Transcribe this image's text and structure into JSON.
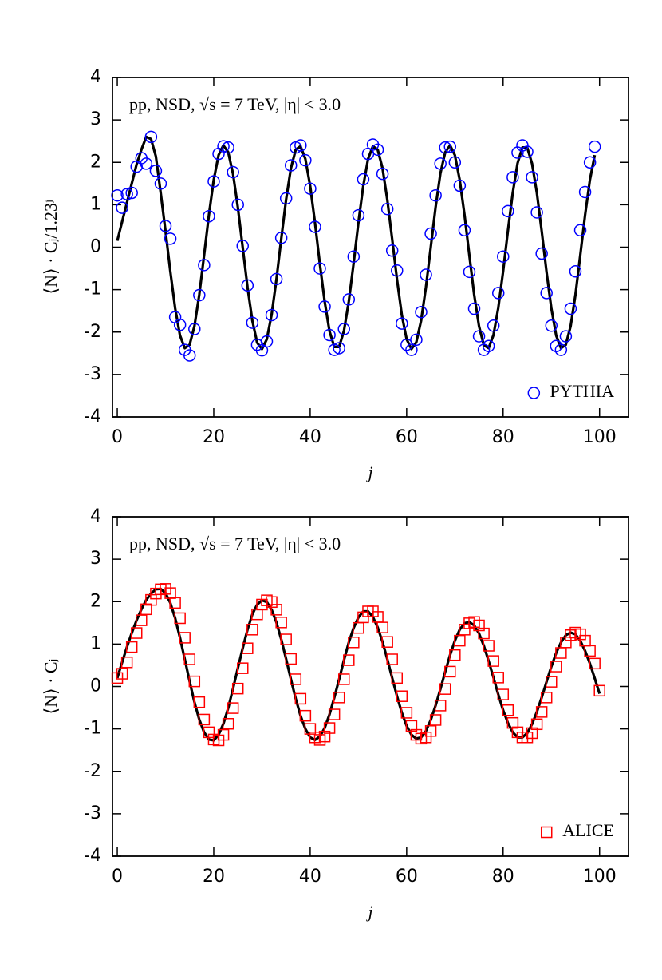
{
  "chart_data": [
    {
      "type": "scatter",
      "annotation": "pp, NSD, √s = 7 TeV, |η| < 3.0",
      "xlabel": "j",
      "ylabel": "⟨N⟩ · Cⱼ/1.23ʲ",
      "legend": "lower right",
      "xlim": [
        -1,
        106
      ],
      "ylim": [
        -4,
        4
      ],
      "xticks": [
        0,
        20,
        40,
        60,
        80,
        100
      ],
      "yticks": [
        -4,
        -3,
        -2,
        -1,
        0,
        1,
        2,
        3,
        4
      ],
      "x": [
        0,
        1,
        2,
        3,
        4,
        5,
        6,
        7,
        8,
        9,
        10,
        11,
        12,
        13,
        14,
        15,
        16,
        17,
        18,
        19,
        20,
        21,
        22,
        23,
        24,
        25,
        26,
        27,
        28,
        29,
        30,
        31,
        32,
        33,
        34,
        35,
        36,
        37,
        38,
        39,
        40,
        41,
        42,
        43,
        44,
        45,
        46,
        47,
        48,
        49,
        50,
        51,
        52,
        53,
        54,
        55,
        56,
        57,
        58,
        59,
        60,
        61,
        62,
        63,
        64,
        65,
        66,
        67,
        68,
        69,
        70,
        71,
        72,
        73,
        74,
        75,
        76,
        77,
        78,
        79,
        80,
        81,
        82,
        83,
        84,
        85,
        86,
        87,
        88,
        89,
        90,
        91,
        92,
        93,
        94,
        95,
        96,
        97,
        98,
        99
      ],
      "series": [
        {
          "name": "PYTHIA",
          "style": "markers",
          "marker": "circle",
          "color": "#0000ff",
          "values": [
            1.22,
            0.93,
            1.25,
            1.28,
            1.9,
            2.1,
            1.97,
            2.6,
            1.8,
            1.5,
            0.5,
            0.2,
            -1.65,
            -1.83,
            -2.42,
            -2.55,
            -1.93,
            -1.13,
            -0.42,
            0.73,
            1.55,
            2.2,
            2.38,
            2.35,
            1.77,
            1.0,
            0.03,
            -0.9,
            -1.78,
            -2.3,
            -2.43,
            -2.22,
            -1.6,
            -0.75,
            0.22,
            1.15,
            1.93,
            2.35,
            2.4,
            2.05,
            1.38,
            0.48,
            -0.5,
            -1.4,
            -2.07,
            -2.42,
            -2.38,
            -1.93,
            -1.23,
            -0.22,
            0.75,
            1.6,
            2.2,
            2.42,
            2.3,
            1.73,
            0.9,
            -0.08,
            -0.55,
            -1.8,
            -2.3,
            -2.42,
            -2.18,
            -1.53,
            -0.65,
            0.32,
            1.22,
            1.97,
            2.35,
            2.37,
            2.0,
            1.45,
            0.4,
            -0.58,
            -1.45,
            -2.1,
            -2.42,
            -2.33,
            -1.85,
            -1.08,
            -0.22,
            0.85,
            1.65,
            2.23,
            2.4,
            2.25,
            1.65,
            0.82,
            -0.15,
            -1.08,
            -1.85,
            -2.33,
            -2.42,
            -2.1,
            -1.45,
            -0.57,
            0.4,
            1.3,
            2.0,
            2.37
          ]
        },
        {
          "style": "line",
          "color": "#000000",
          "values": [
            0.15,
            0.6,
            1.05,
            1.5,
            1.95,
            2.3,
            2.6,
            2.55,
            2.14,
            1.28,
            0.38,
            -0.57,
            -1.44,
            -2.08,
            -2.38,
            -2.3,
            -1.86,
            -1.12,
            -0.19,
            0.76,
            1.59,
            2.17,
            2.4,
            2.24,
            1.73,
            0.94,
            0,
            -0.94,
            -1.73,
            -2.25,
            -2.4,
            -2.17,
            -1.59,
            -0.76,
            0.2,
            1.12,
            1.86,
            2.3,
            2.38,
            2.08,
            1.44,
            0.57,
            -0.39,
            -1.28,
            -1.98,
            -2.35,
            -2.35,
            -1.97,
            -1.28,
            -0.38,
            0.58,
            1.44,
            2.08,
            2.38,
            2.3,
            1.86,
            1.11,
            0.19,
            -0.76,
            -1.6,
            -2.17,
            -2.4,
            -2.24,
            -1.73,
            -0.94,
            0,
            0.94,
            1.74,
            2.24,
            2.4,
            2.17,
            1.59,
            0.76,
            -0.19,
            -1.12,
            -1.86,
            -2.31,
            -2.38,
            -2.07,
            -1.43,
            -0.57,
            0.39,
            1.28,
            1.98,
            2.35,
            2.35,
            1.97,
            1.28,
            0.38,
            -0.58,
            -1.44,
            -2.08,
            -2.38,
            -2.3,
            -1.86,
            -1.12,
            -0.19,
            0.76,
            1.59,
            2.17
          ]
        }
      ]
    },
    {
      "type": "scatter",
      "annotation": "pp, NSD, √s = 7 TeV, |η| < 3.0",
      "xlabel": "j",
      "ylabel": "⟨N⟩ · Cⱼ",
      "legend": "lower right",
      "xlim": [
        -1,
        106
      ],
      "ylim": [
        -4,
        4
      ],
      "xticks": [
        0,
        20,
        40,
        60,
        80,
        100
      ],
      "yticks": [
        -4,
        -3,
        -2,
        -1,
        0,
        1,
        2,
        3,
        4
      ],
      "x": [
        0,
        1,
        2,
        3,
        4,
        5,
        6,
        7,
        8,
        9,
        10,
        11,
        12,
        13,
        14,
        15,
        16,
        17,
        18,
        19,
        20,
        21,
        22,
        23,
        24,
        25,
        26,
        27,
        28,
        29,
        30,
        31,
        32,
        33,
        34,
        35,
        36,
        37,
        38,
        39,
        40,
        41,
        42,
        43,
        44,
        45,
        46,
        47,
        48,
        49,
        50,
        51,
        52,
        53,
        54,
        55,
        56,
        57,
        58,
        59,
        60,
        61,
        62,
        63,
        64,
        65,
        66,
        67,
        68,
        69,
        70,
        71,
        72,
        73,
        74,
        75,
        76,
        77,
        78,
        79,
        80,
        81,
        82,
        83,
        84,
        85,
        86,
        87,
        88,
        89,
        90,
        91,
        92,
        93,
        94,
        95,
        96,
        97,
        98,
        99,
        100
      ],
      "series": [
        {
          "name": "ALICE",
          "style": "markers",
          "marker": "square",
          "color": "#ff0000",
          "values": [
            0.2,
            0.3,
            0.57,
            0.93,
            1.26,
            1.56,
            1.82,
            2.04,
            2.19,
            2.29,
            2.3,
            2.2,
            1.97,
            1.61,
            1.15,
            0.64,
            0.12,
            -0.37,
            -0.78,
            -1.08,
            -1.25,
            -1.27,
            -1.14,
            -0.88,
            -0.51,
            -0.05,
            0.43,
            0.9,
            1.34,
            1.7,
            1.93,
            2.03,
            1.99,
            1.81,
            1.51,
            1.11,
            0.65,
            0.17,
            -0.29,
            -0.69,
            -1.0,
            -1.2,
            -1.26,
            -1.18,
            -0.98,
            -0.66,
            -0.26,
            0.17,
            0.62,
            1.04,
            1.38,
            1.63,
            1.77,
            1.77,
            1.64,
            1.39,
            1.05,
            0.64,
            0.2,
            -0.23,
            -0.62,
            -0.93,
            -1.14,
            -1.23,
            -1.2,
            -1.05,
            -0.79,
            -0.45,
            -0.06,
            0.35,
            0.74,
            1.08,
            1.34,
            1.49,
            1.52,
            1.44,
            1.25,
            0.96,
            0.6,
            0.21,
            -0.19,
            -0.56,
            -0.86,
            -1.08,
            -1.2,
            -1.2,
            -1.1,
            -0.89,
            -0.6,
            -0.26,
            0.11,
            0.47,
            0.79,
            1.04,
            1.21,
            1.27,
            1.23,
            1.08,
            0.84,
            0.54,
            -0.1
          ]
        },
        {
          "style": "line",
          "color": "#000000",
          "values": [
            0.2,
            0.57,
            0.93,
            1.26,
            1.56,
            1.82,
            2.04,
            2.19,
            2.29,
            2.3,
            2.2,
            1.97,
            1.61,
            1.15,
            0.64,
            0.12,
            -0.37,
            -0.78,
            -1.08,
            -1.25,
            -1.27,
            -1.14,
            -0.88,
            -0.51,
            -0.05,
            0.43,
            0.9,
            1.34,
            1.7,
            1.93,
            2.03,
            1.99,
            1.81,
            1.51,
            1.11,
            0.65,
            0.17,
            -0.29,
            -0.69,
            -1.0,
            -1.2,
            -1.26,
            -1.18,
            -0.98,
            -0.66,
            -0.26,
            0.17,
            0.62,
            1.04,
            1.38,
            1.63,
            1.77,
            1.77,
            1.64,
            1.39,
            1.05,
            0.64,
            0.2,
            -0.23,
            -0.62,
            -0.93,
            -1.14,
            -1.23,
            -1.2,
            -1.05,
            -0.79,
            -0.45,
            -0.06,
            0.35,
            0.74,
            1.08,
            1.34,
            1.49,
            1.52,
            1.44,
            1.25,
            0.96,
            0.6,
            0.21,
            -0.19,
            -0.56,
            -0.86,
            -1.08,
            -1.2,
            -1.2,
            -1.1,
            -0.89,
            -0.6,
            -0.26,
            0.11,
            0.47,
            0.79,
            1.04,
            1.21,
            1.27,
            1.23,
            1.08,
            0.84,
            0.54,
            0.19,
            -0.17
          ]
        }
      ]
    }
  ]
}
